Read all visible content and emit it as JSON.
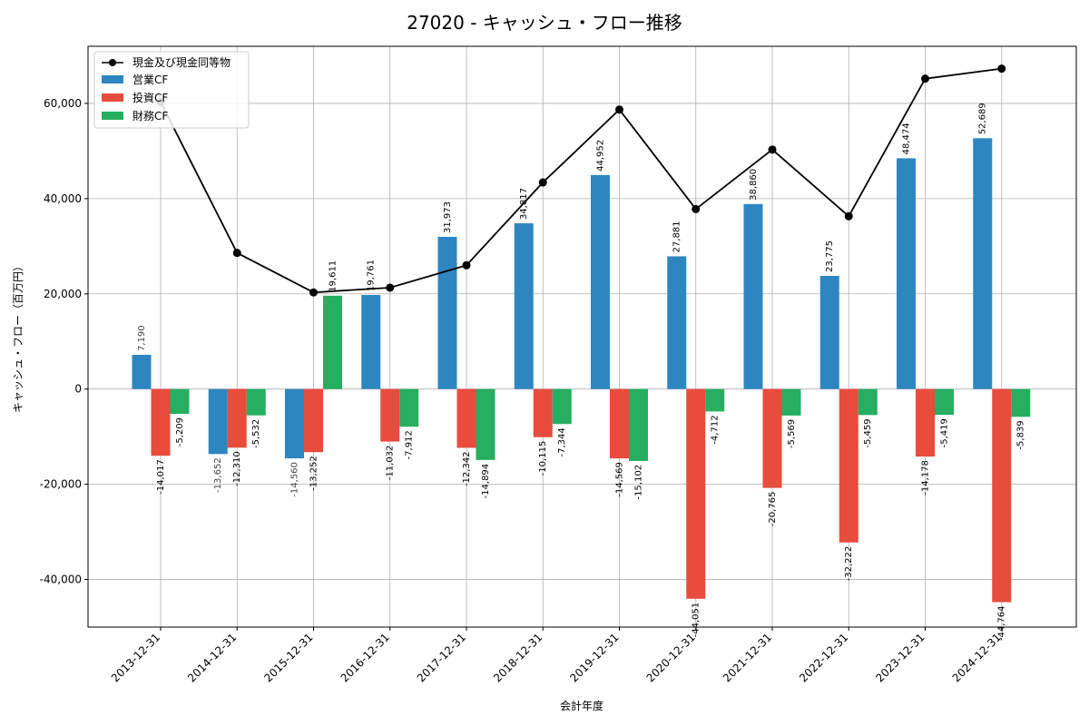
{
  "chart_data": {
    "type": "bar",
    "title": "27020 - キャッシュ・フロー推移",
    "xlabel": "会計年度",
    "ylabel": "キャッシュ・フロー（百万円）",
    "ylim": [
      -50000,
      72000
    ],
    "yticks": [
      -40000,
      -20000,
      0,
      20000,
      40000,
      60000
    ],
    "ytick_labels": [
      "-40,000",
      "-20,000",
      "0",
      "20,000",
      "40,000",
      "60,000"
    ],
    "grid": true,
    "legend_position": "top-left",
    "categories": [
      "2013-12-31",
      "2014-12-31",
      "2015-12-31",
      "2016-12-31",
      "2017-12-31",
      "2018-12-31",
      "2019-12-31",
      "2020-12-31",
      "2021-12-31",
      "2022-12-31",
      "2023-12-31",
      "2024-12-31"
    ],
    "line_series": {
      "name": "現金及び現金同等物",
      "color": "#000000",
      "values": [
        60300,
        28600,
        20300,
        21300,
        26000,
        43400,
        58700,
        37800,
        50300,
        36300,
        65200,
        67300
      ]
    },
    "series": [
      {
        "name": "営業CF",
        "color": "#2e86c1",
        "values": [
          7190,
          -13652,
          -14560,
          19761,
          31973,
          34817,
          44952,
          27881,
          38860,
          23775,
          48474,
          52689
        ],
        "labels": [
          "7,190",
          "-13,652",
          "-14,560",
          "19,761",
          "31,973",
          "34,817",
          "44,952",
          "27,881",
          "38,860",
          "23,775",
          "48,474",
          "52,689"
        ]
      },
      {
        "name": "投資CF",
        "color": "#e74c3c",
        "values": [
          -14017,
          -12310,
          -13252,
          -11032,
          -12342,
          -10115,
          -14569,
          -44051,
          -20765,
          -32222,
          -14178,
          -44764
        ],
        "labels": [
          "-14,017",
          "-12,310",
          "-13,252",
          "-11,032",
          "-12,342",
          "-10,115",
          "-14,569",
          "-44,051",
          "-20,765",
          "-32,222",
          "-14,178",
          "-44,764"
        ]
      },
      {
        "name": "財務CF",
        "color": "#27ae60",
        "values": [
          -5209,
          -5532,
          19611,
          -7912,
          -14894,
          -7344,
          -15102,
          -4712,
          -5569,
          -5459,
          -5419,
          -5839
        ],
        "labels": [
          "-5,209",
          "-5,532",
          "19,611",
          "-7,912",
          "-14,894",
          "-7,344",
          "-15,102",
          "-4,712",
          "-5,569",
          "-5,459",
          "-5,419",
          "-5,839"
        ]
      }
    ]
  }
}
